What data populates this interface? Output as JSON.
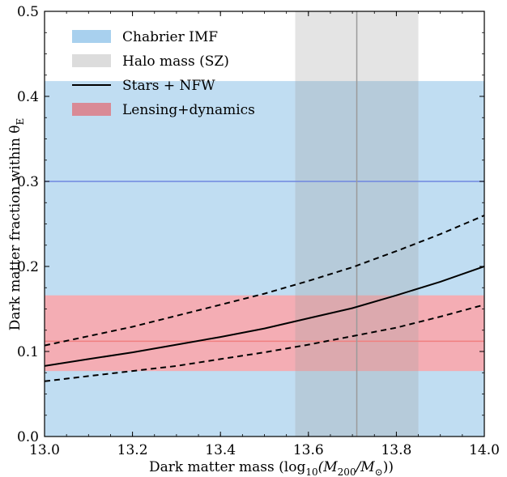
{
  "chart_data": {
    "type": "line",
    "xlabel_main": "Dark matter mass (log",
    "xlabel_sub1": "10",
    "xlabel_mid": "(M",
    "xlabel_sub2": "200",
    "xlabel_slash": "/M",
    "xlabel_sub3": "⊙",
    "xlabel_end": "))",
    "ylabel_main": "Dark matter fraction within θ",
    "ylabel_sub": "E",
    "xlim": [
      13.0,
      14.0
    ],
    "ylim": [
      0.0,
      0.5
    ],
    "xticks": [
      "13.0",
      "13.2",
      "13.4",
      "13.6",
      "13.8",
      "14.0"
    ],
    "xtick_values": [
      13.0,
      13.2,
      13.4,
      13.6,
      13.8,
      14.0
    ],
    "yticks": [
      "0.0",
      "0.1",
      "0.2",
      "0.3",
      "0.4",
      "0.5"
    ],
    "ytick_values": [
      0.0,
      0.1,
      0.2,
      0.3,
      0.4,
      0.5
    ],
    "legend": [
      {
        "label": "Chabrier IMF",
        "kind": "patch",
        "color": "#a8d0ee"
      },
      {
        "label": "Halo mass (SZ)",
        "kind": "patch",
        "color": "#dcdcdc"
      },
      {
        "label": "Stars + NFW",
        "kind": "line",
        "color": "#000000"
      },
      {
        "label": "Lensing+dynamics",
        "kind": "patch",
        "color": "#d98a96"
      }
    ],
    "legend_position": "top-left",
    "bands": {
      "chabrier_imf": {
        "y_low": 0.0,
        "y_high": 0.418,
        "center": 0.3,
        "fill": "#c0ddf2",
        "line": "#6f86e0"
      },
      "lensing_dynamics": {
        "y_low": 0.077,
        "y_high": 0.166,
        "center": 0.112,
        "fill": "#f7aab0",
        "line": "#f08080"
      },
      "halo_mass_sz": {
        "x_low": 13.57,
        "x_high": 13.85,
        "center": 13.71,
        "fill": "#cccccc",
        "line": "#9a9a9a"
      }
    },
    "series": [
      {
        "name": "Stars + NFW",
        "style": "solid",
        "x": [
          13.0,
          13.1,
          13.2,
          13.3,
          13.4,
          13.5,
          13.6,
          13.7,
          13.8,
          13.9,
          14.0
        ],
        "values": [
          0.083,
          0.091,
          0.099,
          0.108,
          0.117,
          0.127,
          0.139,
          0.151,
          0.166,
          0.182,
          0.2
        ]
      },
      {
        "style": "dashed",
        "x": [
          13.0,
          13.1,
          13.2,
          13.3,
          13.4,
          13.5,
          13.6,
          13.7,
          13.8,
          13.9,
          14.0
        ],
        "values": [
          0.107,
          0.118,
          0.129,
          0.142,
          0.155,
          0.168,
          0.183,
          0.199,
          0.218,
          0.238,
          0.26
        ]
      },
      {
        "style": "dashed",
        "x": [
          13.0,
          13.1,
          13.2,
          13.3,
          13.4,
          13.5,
          13.6,
          13.7,
          13.8,
          13.9,
          14.0
        ],
        "values": [
          0.065,
          0.071,
          0.077,
          0.083,
          0.091,
          0.099,
          0.108,
          0.118,
          0.128,
          0.141,
          0.155
        ]
      }
    ]
  }
}
